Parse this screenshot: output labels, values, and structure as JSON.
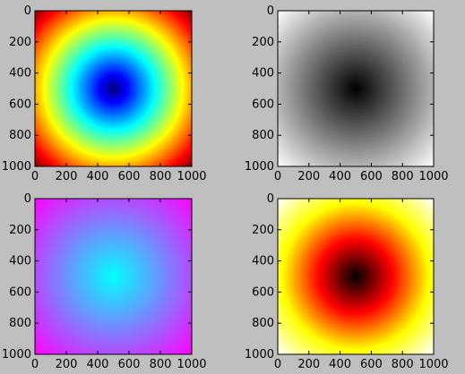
{
  "figure": {
    "background": "#bfbfbf"
  },
  "chart_data": [
    {
      "type": "heatmap",
      "function": "distance from center (500, 500)",
      "colormap": "jet",
      "x_range": [
        0,
        1000
      ],
      "y_range": [
        0,
        1000
      ],
      "y_inverted": true,
      "x_ticks": [
        0,
        200,
        400,
        600,
        800,
        1000
      ],
      "y_ticks": [
        0,
        200,
        400,
        600,
        800,
        1000
      ],
      "grid": false
    },
    {
      "type": "heatmap",
      "function": "distance from center (500, 500)",
      "colormap": "gray",
      "x_range": [
        0,
        1000
      ],
      "y_range": [
        0,
        1000
      ],
      "y_inverted": true,
      "x_ticks": [
        0,
        200,
        400,
        600,
        800,
        1000
      ],
      "y_ticks": [
        0,
        200,
        400,
        600,
        800,
        1000
      ],
      "grid": false
    },
    {
      "type": "heatmap",
      "function": "distance from center (500, 500)",
      "colormap": "cool",
      "x_range": [
        0,
        1000
      ],
      "y_range": [
        0,
        1000
      ],
      "y_inverted": true,
      "x_ticks": [
        0,
        200,
        400,
        600,
        800,
        1000
      ],
      "y_ticks": [
        0,
        200,
        400,
        600,
        800,
        1000
      ],
      "grid": false
    },
    {
      "type": "heatmap",
      "function": "distance from center (500, 500)",
      "colormap": "hot",
      "x_range": [
        0,
        1000
      ],
      "y_range": [
        0,
        1000
      ],
      "y_inverted": true,
      "x_ticks": [
        0,
        200,
        400,
        600,
        800,
        1000
      ],
      "y_ticks": [
        0,
        200,
        400,
        600,
        800,
        1000
      ],
      "grid": false
    }
  ]
}
